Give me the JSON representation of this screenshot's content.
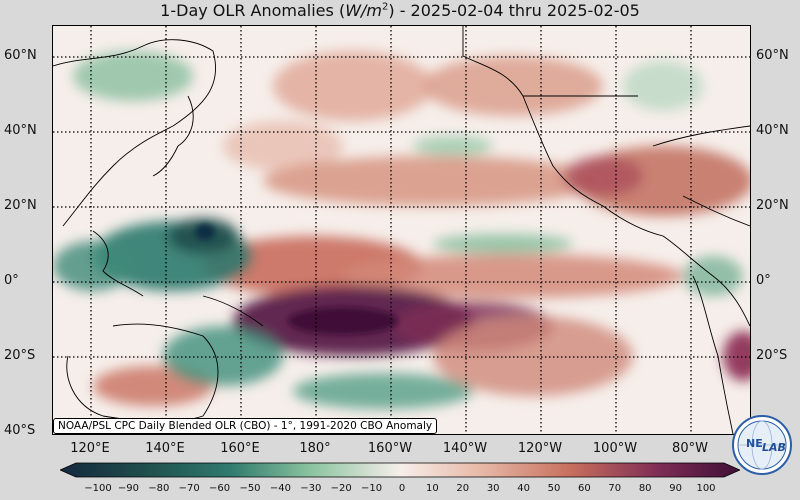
{
  "title": {
    "prefix": "1-Day OLR Anomalies (",
    "units": "W/m",
    "exponent": "2",
    "suffix": ") - 2025-02-04 thru 2025-02-05"
  },
  "latitude_labels": [
    "60°N",
    "40°N",
    "20°N",
    "0°",
    "20°S",
    "40°S"
  ],
  "longitude_labels": [
    "120°E",
    "140°E",
    "160°E",
    "180°",
    "160°W",
    "140°W",
    "120°W",
    "100°W",
    "80°W"
  ],
  "credit": "NOAA/PSL CPC Daily Blended OLR (CBO) - 1°, 1991-2020 CBO Anomaly",
  "colorbar": {
    "ticks": [
      "−100",
      "−90",
      "−80",
      "−70",
      "−60",
      "−50",
      "−40",
      "−30",
      "−20",
      "−10",
      "0",
      "10",
      "20",
      "30",
      "40",
      "50",
      "60",
      "70",
      "80",
      "90",
      "100"
    ],
    "negative_color": "#1f4d4b",
    "positive_color": "#4a0f3d"
  },
  "logo": {
    "text_ne": "NE",
    "text_lab": "LAB"
  },
  "colors": {
    "strong_negative": "#0f2f45",
    "negative": "#2f7a6e",
    "weak_negative": "#8cc4a0",
    "neutral": "#f6eeea",
    "weak_positive": "#e7b8a6",
    "positive": "#c86f5e",
    "strong_positive": "#5a1a4a"
  }
}
